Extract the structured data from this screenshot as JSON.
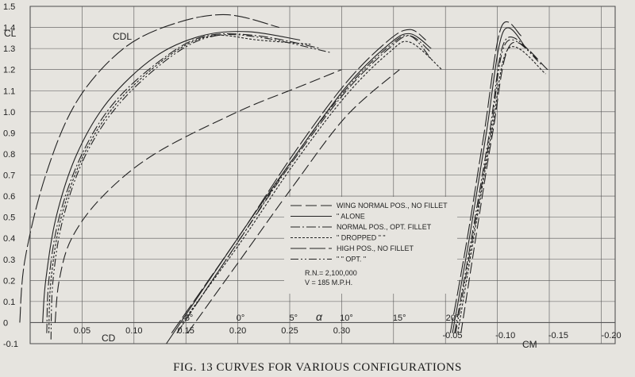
{
  "caption": "FIG. 13  CURVES FOR VARIOUS CONFIGURATIONS",
  "chart_data": {
    "type": "line",
    "ylabel": "CL",
    "y_ticks": [
      "-0.1",
      "0",
      "0.1",
      "0.2",
      "0.3",
      "0.4",
      "0.5",
      "0.6",
      "0.7",
      "0.8",
      "0.9",
      "1.0",
      "1.1",
      "1.2",
      "1.3",
      "1.4",
      "1.5"
    ],
    "ylim": [
      -0.1,
      1.5
    ],
    "grid": true,
    "cd_axis": {
      "label": "CD",
      "ticks": [
        "0.05",
        "0.10",
        "0.15",
        "0.20",
        "0.25",
        "0.30"
      ],
      "range": [
        0.0,
        0.55
      ]
    },
    "alpha_axis": {
      "label": "α",
      "ticks": [
        "-5°",
        "0°",
        "5°",
        "10°",
        "15°",
        "20°"
      ]
    },
    "cm_axis": {
      "label": "CM",
      "ticks": [
        "-0.05",
        "-0.10",
        "-0.15",
        "-0.20"
      ]
    },
    "curve_label": "CDL",
    "legend_position": "center",
    "legend": [
      {
        "label": "WING NORMAL POS., NO FILLET",
        "dash": "14,5"
      },
      {
        "label": "\"  ALONE",
        "dash": ""
      },
      {
        "label": "NORMAL POS., OPT. FILLET",
        "dash": "12,3,2,3"
      },
      {
        "label": "\"  DROPPED  \"      \"",
        "dash": "3,2"
      },
      {
        "label": "HIGH POS., NO FILLET",
        "dash": "20,4"
      },
      {
        "label": "\"      \"      OPT.  \"",
        "dash": "10,3,2,3,2,3"
      }
    ],
    "notes": [
      "R.N.= 2,100,000",
      "V = 185 M.P.H."
    ],
    "drag_polars": {
      "x_unit": "CD",
      "series": [
        {
          "name": "WING NORMAL POS., NO FILLET",
          "points": [
            [
              0.024,
              0
            ],
            [
              0.028,
              0.2
            ],
            [
              0.04,
              0.4
            ],
            [
              0.07,
              0.6
            ],
            [
              0.12,
              0.8
            ],
            [
              0.2,
              1.0
            ],
            [
              0.26,
              1.12
            ],
            [
              0.3,
              1.2
            ]
          ]
        },
        {
          "name": "ALONE",
          "points": [
            [
              0.012,
              0
            ],
            [
              0.015,
              0.2
            ],
            [
              0.025,
              0.5
            ],
            [
              0.045,
              0.8
            ],
            [
              0.075,
              1.05
            ],
            [
              0.12,
              1.26
            ],
            [
              0.165,
              1.36
            ],
            [
              0.21,
              1.38
            ],
            [
              0.26,
              1.34
            ]
          ]
        },
        {
          "name": "NORMAL POS., OPT. FILLET",
          "points": [
            [
              0.016,
              -0.05
            ],
            [
              0.018,
              0.2
            ],
            [
              0.028,
              0.5
            ],
            [
              0.05,
              0.8
            ],
            [
              0.082,
              1.05
            ],
            [
              0.13,
              1.26
            ],
            [
              0.17,
              1.36
            ],
            [
              0.22,
              1.36
            ],
            [
              0.28,
              1.3
            ]
          ]
        },
        {
          "name": "DROPPED",
          "points": [
            [
              0.018,
              -0.05
            ],
            [
              0.02,
              0.2
            ],
            [
              0.03,
              0.5
            ],
            [
              0.052,
              0.8
            ],
            [
              0.085,
              1.05
            ],
            [
              0.135,
              1.27
            ],
            [
              0.175,
              1.36
            ],
            [
              0.22,
              1.34
            ],
            [
              0.27,
              1.32
            ]
          ]
        },
        {
          "name": "HIGH POS., NO FILLET",
          "points": [
            [
              -0.01,
              0
            ],
            [
              -0.005,
              0.3
            ],
            [
              0.015,
              0.7
            ],
            [
              0.045,
              1.05
            ],
            [
              0.09,
              1.3
            ],
            [
              0.14,
              1.42
            ],
            [
              0.19,
              1.46
            ],
            [
              0.24,
              1.4
            ]
          ]
        },
        {
          "name": "HIGH POS., OPT. FILLET",
          "points": [
            [
              0.02,
              -0.08
            ],
            [
              0.022,
              0.2
            ],
            [
              0.032,
              0.5
            ],
            [
              0.054,
              0.8
            ],
            [
              0.088,
              1.05
            ],
            [
              0.138,
              1.27
            ],
            [
              0.178,
              1.36
            ],
            [
              0.225,
              1.35
            ],
            [
              0.29,
              1.28
            ]
          ]
        }
      ]
    },
    "lift_curves": {
      "x_unit": "alpha_deg",
      "series": [
        {
          "name": "WING NORMAL POS., NO FILLET",
          "points": [
            [
              -5,
              -0.05
            ],
            [
              0,
              0.3
            ],
            [
              5,
              0.65
            ],
            [
              10,
              0.98
            ],
            [
              15,
              1.2
            ]
          ]
        },
        {
          "name": "ALONE",
          "points": [
            [
              -7,
              -0.1
            ],
            [
              0,
              0.42
            ],
            [
              5,
              0.78
            ],
            [
              10,
              1.12
            ],
            [
              14,
              1.32
            ],
            [
              16,
              1.37
            ],
            [
              18,
              1.3
            ]
          ]
        },
        {
          "name": "NORMAL POS., OPT. FILLET",
          "points": [
            [
              -6,
              -0.05
            ],
            [
              0,
              0.4
            ],
            [
              5,
              0.77
            ],
            [
              10,
              1.1
            ],
            [
              14,
              1.3
            ],
            [
              16,
              1.36
            ],
            [
              18,
              1.28
            ]
          ]
        },
        {
          "name": "DROPPED",
          "points": [
            [
              -5.5,
              0
            ],
            [
              0,
              0.38
            ],
            [
              5,
              0.75
            ],
            [
              10,
              1.08
            ],
            [
              14,
              1.28
            ],
            [
              16,
              1.33
            ],
            [
              19,
              1.2
            ]
          ]
        },
        {
          "name": "HIGH POS., NO FILLET",
          "points": [
            [
              -6.5,
              -0.05
            ],
            [
              0,
              0.42
            ],
            [
              5,
              0.8
            ],
            [
              10,
              1.14
            ],
            [
              14,
              1.34
            ],
            [
              16,
              1.39
            ],
            [
              17.5,
              1.34
            ]
          ]
        },
        {
          "name": "HIGH POS., OPT. FILLET",
          "points": [
            [
              -6,
              -0.05
            ],
            [
              0,
              0.4
            ],
            [
              5,
              0.78
            ],
            [
              10,
              1.11
            ],
            [
              14,
              1.31
            ],
            [
              16,
              1.36
            ],
            [
              18,
              1.25
            ]
          ]
        }
      ]
    },
    "moment_curves": {
      "x_unit": "CM",
      "series": [
        {
          "name": "WING NORMAL POS., NO FILLET",
          "points": [
            [
              -0.058,
              -0.05
            ],
            [
              -0.072,
              0.4
            ],
            [
              -0.088,
              0.9
            ],
            [
              -0.105,
              1.32
            ],
            [
              -0.14,
              1.2
            ]
          ]
        },
        {
          "name": "ALONE",
          "points": [
            [
              -0.05,
              -0.05
            ],
            [
              -0.066,
              0.4
            ],
            [
              -0.082,
              0.9
            ],
            [
              -0.098,
              1.38
            ],
            [
              -0.12,
              1.3
            ]
          ]
        },
        {
          "name": "NORMAL POS., OPT. FILLET",
          "points": [
            [
              -0.052,
              -0.05
            ],
            [
              -0.068,
              0.4
            ],
            [
              -0.085,
              0.9
            ],
            [
              -0.1,
              1.34
            ],
            [
              -0.13,
              1.25
            ]
          ]
        },
        {
          "name": "DROPPED",
          "points": [
            [
              -0.055,
              -0.05
            ],
            [
              -0.07,
              0.4
            ],
            [
              -0.087,
              0.9
            ],
            [
              -0.103,
              1.3
            ],
            [
              -0.138,
              1.18
            ]
          ]
        },
        {
          "name": "HIGH POS., NO FILLET",
          "points": [
            [
              -0.048,
              -0.05
            ],
            [
              -0.064,
              0.4
            ],
            [
              -0.08,
              0.9
            ],
            [
              -0.096,
              1.4
            ],
            [
              -0.115,
              1.36
            ]
          ]
        },
        {
          "name": "HIGH POS., OPT. FILLET",
          "points": [
            [
              -0.053,
              -0.05
            ],
            [
              -0.069,
              0.4
            ],
            [
              -0.086,
              0.9
            ],
            [
              -0.101,
              1.33
            ],
            [
              -0.135,
              1.22
            ]
          ]
        }
      ]
    }
  }
}
